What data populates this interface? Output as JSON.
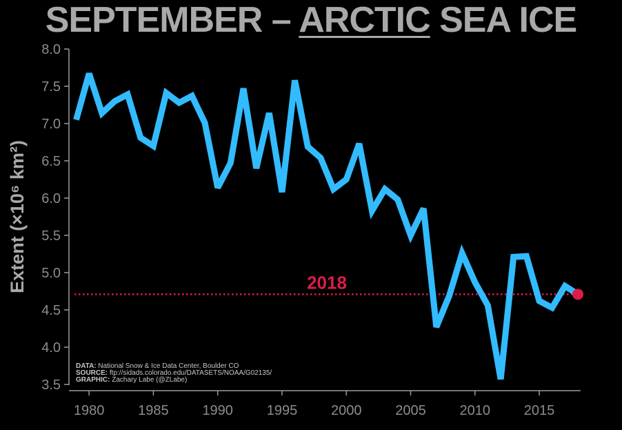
{
  "title": {
    "prefix": "SEPTEMBER – ",
    "highlight": "ARCTIC",
    "suffix": " SEA ICE"
  },
  "credits": {
    "data_label": "DATA:",
    "data_value": "National Snow & Ice Data Center, Boulder CO",
    "source_label": "SOURCE:",
    "source_value": "ftp://sidads.colorado.edu/DATASETS/NOAA/G02135/",
    "graphic_label": "GRAPHIC:",
    "graphic_value": "Zachary Labe (@ZLabe)"
  },
  "chart_data": {
    "type": "line",
    "title": "SEPTEMBER – ARCTIC SEA ICE",
    "ylabel": "Extent (×10⁶ km²)",
    "xlabel": "",
    "xlim": [
      1979,
      2018
    ],
    "ylim": [
      3.5,
      8.0
    ],
    "x_ticks": [
      1980,
      1985,
      1990,
      1995,
      2000,
      2005,
      2010,
      2015
    ],
    "y_ticks": [
      "3.5",
      "4.0",
      "4.5",
      "5.0",
      "5.5",
      "6.0",
      "6.5",
      "7.0",
      "7.5",
      "8.0"
    ],
    "grid": false,
    "line_color": "#33bbff",
    "highlight_color": "#dd1c4a",
    "series": [
      {
        "x": [
          1979,
          1980,
          1981,
          1982,
          1983,
          1984,
          1985,
          1986,
          1987,
          1988,
          1989,
          1990,
          1991,
          1992,
          1993,
          1994,
          1995,
          1996,
          1997,
          1998,
          1999,
          2000,
          2001,
          2002,
          2003,
          2004,
          2005,
          2006,
          2007,
          2008,
          2009,
          2010,
          2011,
          2012,
          2013,
          2014,
          2015,
          2016,
          2017,
          2018
        ],
        "values": [
          7.05,
          7.67,
          7.14,
          7.3,
          7.39,
          6.81,
          6.7,
          7.41,
          7.28,
          7.37,
          7.01,
          6.14,
          6.47,
          7.47,
          6.4,
          7.14,
          6.08,
          7.58,
          6.69,
          6.54,
          6.12,
          6.25,
          6.73,
          5.83,
          6.12,
          5.98,
          5.5,
          5.86,
          4.27,
          4.69,
          5.26,
          4.87,
          4.56,
          3.57,
          5.21,
          5.22,
          4.62,
          4.53,
          4.82,
          4.71
        ]
      }
    ],
    "reference_line": {
      "value": 4.71,
      "label": "2018"
    },
    "highlight_point": {
      "x": 2018,
      "value": 4.71
    }
  }
}
